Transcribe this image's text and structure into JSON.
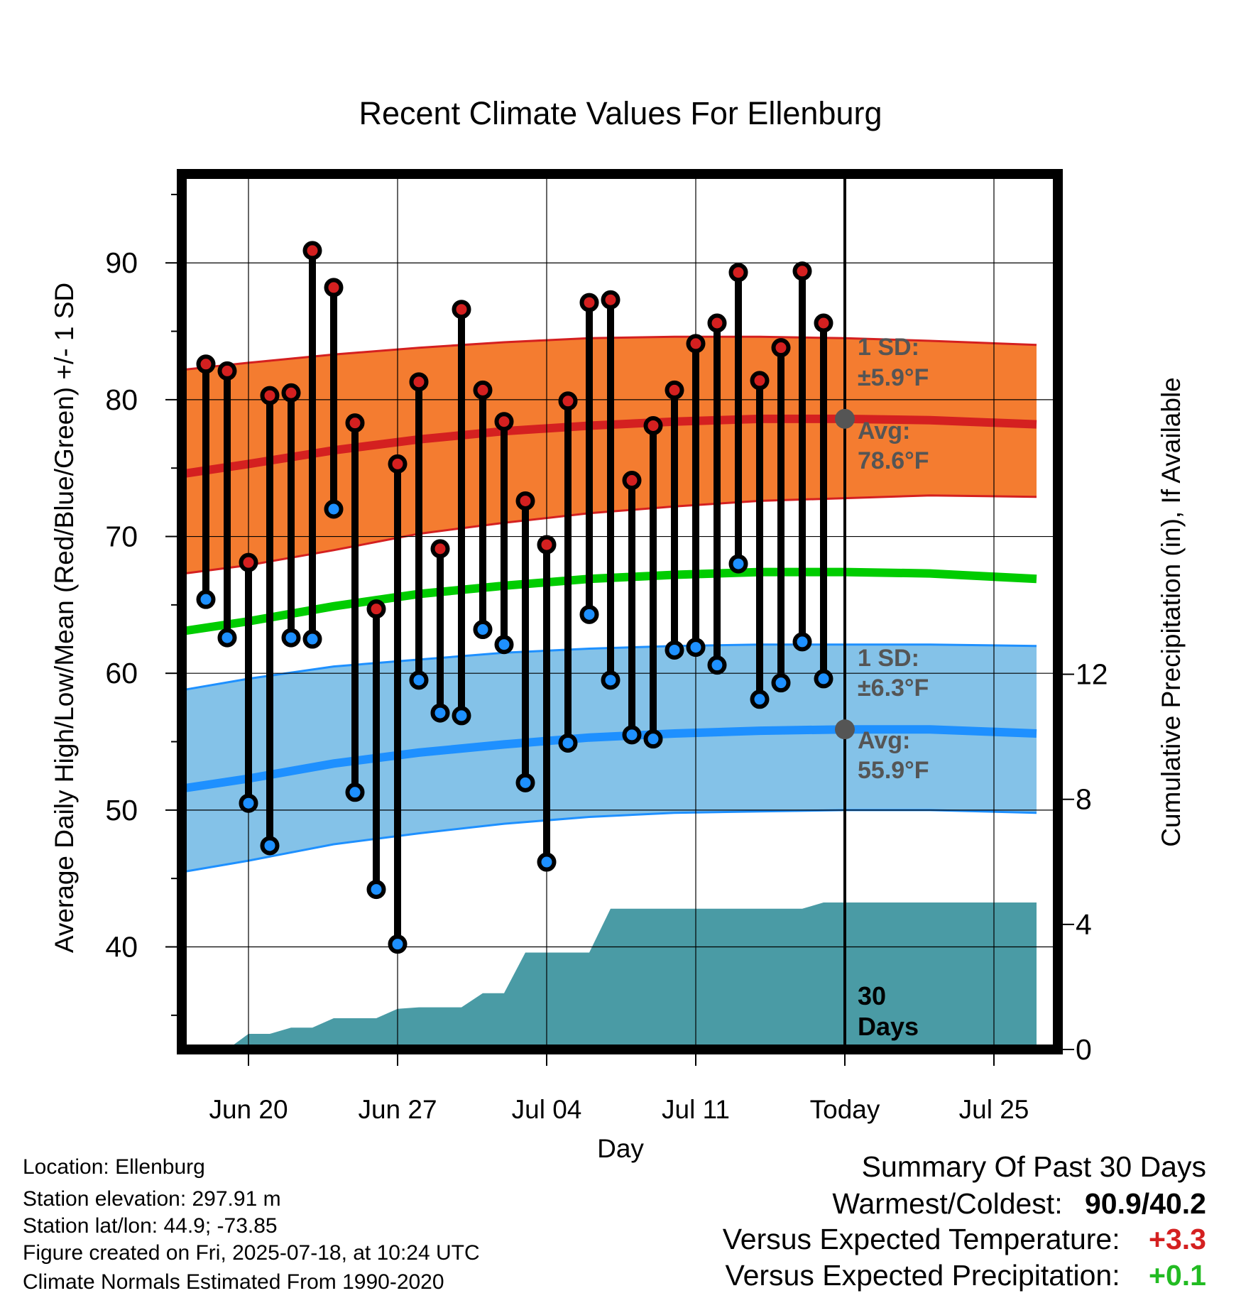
{
  "chart_data": {
    "type": "line",
    "title": "Recent Climate Values For Ellenburg",
    "xlabel": "Day",
    "ylabel": "Average Daily High/Low/Mean (Red/Blue/Green) +/- 1 SD",
    "y2label": "Cumulative Precipitation (in), If Available",
    "x_ticks": [
      "Jun 20",
      "Jun 27",
      "Jul 04",
      "Jul 11",
      "Today",
      "Jul 25"
    ],
    "ylim": [
      32.5,
      96.5
    ],
    "y_ticks": [
      40,
      50,
      60,
      70,
      80,
      90
    ],
    "y2lim": [
      0,
      28
    ],
    "y2_ticks": [
      0,
      4,
      8,
      12
    ],
    "grid": true,
    "days": [
      "Jun 18",
      "Jun 19",
      "Jun 20",
      "Jun 21",
      "Jun 22",
      "Jun 23",
      "Jun 24",
      "Jun 25",
      "Jun 26",
      "Jun 27",
      "Jun 28",
      "Jun 29",
      "Jun 30",
      "Jul 01",
      "Jul 02",
      "Jul 03",
      "Jul 04",
      "Jul 05",
      "Jul 06",
      "Jul 07",
      "Jul 08",
      "Jul 09",
      "Jul 10",
      "Jul 11",
      "Jul 12",
      "Jul 13",
      "Jul 14",
      "Jul 15",
      "Jul 16",
      "Jul 17"
    ],
    "daily_high": [
      82.6,
      82.1,
      68.1,
      80.3,
      80.5,
      90.9,
      88.2,
      78.3,
      64.7,
      75.3,
      81.3,
      69.1,
      86.6,
      80.7,
      78.4,
      72.6,
      69.4,
      79.9,
      87.1,
      87.3,
      74.1,
      78.1,
      80.7,
      84.1,
      85.6,
      89.3,
      81.4,
      83.8,
      89.4,
      85.6
    ],
    "daily_low": [
      65.4,
      62.6,
      50.5,
      47.4,
      62.6,
      62.5,
      72.0,
      51.3,
      44.2,
      40.2,
      59.5,
      57.1,
      56.9,
      63.2,
      62.1,
      52.0,
      46.2,
      54.9,
      64.3,
      59.5,
      55.5,
      55.2,
      61.7,
      61.9,
      60.6,
      68.0,
      58.1,
      59.3,
      62.3,
      59.6
    ],
    "normal_x": [
      "Jun 17",
      "Jun 20",
      "Jun 24",
      "Jun 28",
      "Jul 02",
      "Jul 06",
      "Jul 10",
      "Jul 14",
      "Jul 18",
      "Jul 22",
      "Jul 27"
    ],
    "normal_high_avg": [
      74.6,
      75.3,
      76.3,
      77.1,
      77.7,
      78.1,
      78.4,
      78.6,
      78.6,
      78.5,
      78.2
    ],
    "normal_high_upper": [
      82.2,
      82.7,
      83.3,
      83.8,
      84.2,
      84.5,
      84.6,
      84.6,
      84.5,
      84.3,
      84.0
    ],
    "normal_high_lower": [
      67.3,
      67.9,
      69.0,
      70.2,
      71.0,
      71.7,
      72.2,
      72.6,
      72.8,
      73.0,
      72.9
    ],
    "normal_mean": [
      63.1,
      63.8,
      64.9,
      65.8,
      66.4,
      66.9,
      67.2,
      67.4,
      67.4,
      67.3,
      66.9
    ],
    "normal_low_avg": [
      51.6,
      52.3,
      53.4,
      54.2,
      54.8,
      55.3,
      55.6,
      55.8,
      55.9,
      55.9,
      55.6
    ],
    "normal_low_upper": [
      58.8,
      59.6,
      60.5,
      61.0,
      61.5,
      61.8,
      62.0,
      62.1,
      62.1,
      62.1,
      62.0
    ],
    "normal_low_lower": [
      45.5,
      46.3,
      47.5,
      48.3,
      49.0,
      49.5,
      49.8,
      49.9,
      50.0,
      50.0,
      49.8
    ],
    "precip_x": [
      "Jun 17",
      "Jun 19",
      "Jun 20",
      "Jun 21",
      "Jun 22",
      "Jun 23",
      "Jun 24",
      "Jun 25",
      "Jun 26",
      "Jun 27",
      "Jun 28",
      "Jun 29",
      "Jun 30",
      "Jul 01",
      "Jul 02",
      "Jul 03",
      "Jul 04",
      "Jul 05",
      "Jul 06",
      "Jul 07",
      "Jul 08",
      "Jul 09",
      "Jul 10",
      "Jul 11",
      "Jul 12",
      "Jul 13",
      "Jul 14",
      "Jul 15",
      "Jul 16",
      "Jul 17",
      "Jul 18",
      "Jul 27"
    ],
    "cumulative_precip": [
      0.0,
      0.0,
      0.5,
      0.5,
      0.7,
      0.7,
      1.0,
      1.0,
      1.0,
      1.3,
      1.35,
      1.35,
      1.35,
      1.8,
      1.8,
      3.1,
      3.1,
      3.1,
      3.1,
      4.5,
      4.5,
      4.5,
      4.5,
      4.5,
      4.5,
      4.5,
      4.5,
      4.5,
      4.5,
      4.7,
      4.7,
      4.7
    ],
    "annotations": {
      "high_sd": "1 SD:",
      "high_sd_val": "±5.9°F",
      "high_avg": "Avg:",
      "high_avg_val": "78.6°F",
      "low_sd": "1 SD:",
      "low_sd_val": "±6.3°F",
      "low_avg": "Avg:",
      "low_avg_val": "55.9°F",
      "days_num": "30",
      "days_word": "Days"
    },
    "colors": {
      "high_band": "#f47c30",
      "high_line": "#d42020",
      "mean_line": "#00cc00",
      "low_band": "#84c2e8",
      "low_line": "#1e90ff",
      "precip": "#4a9ba5",
      "high_dot": "#d42020",
      "low_dot": "#1e90ff",
      "annotation": "#555555"
    }
  },
  "info": {
    "location": "Location: Ellenburg",
    "elevation": "Station elevation: 297.91 m",
    "latlon": "Station lat/lon: 44.9; -73.85",
    "created": "Figure created on Fri, 2025-07-18, at 10:24 UTC",
    "normals": "Climate Normals Estimated From 1990-2020"
  },
  "summary": {
    "title": "Summary Of Past 30 Days",
    "warmest_label": "Warmest/Coldest:",
    "warmest_value": "90.9/40.2",
    "temp_label": "Versus Expected Temperature:",
    "temp_value": "+3.3",
    "temp_color": "#d42020",
    "precip_label": "Versus Expected Precipitation:",
    "precip_value": "+0.1",
    "precip_color": "#22bb22"
  }
}
